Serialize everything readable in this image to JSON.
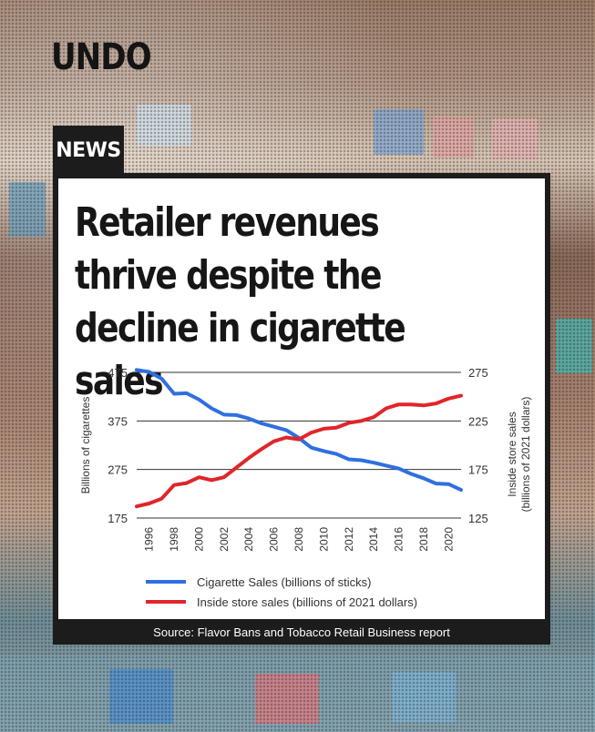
{
  "brand": {
    "logo": "UNDO"
  },
  "label": {
    "news": "NEWS"
  },
  "headline": "Retailer revenues thrive despite the decline in cigarette sales",
  "source": "Source: Flavor Bans and Tobacco Retail Business report",
  "colors": {
    "cigarette": "#2f6fe0",
    "store": "#e0262a",
    "grid": "#333333",
    "text": "#333333"
  },
  "chart_data": {
    "type": "line",
    "x": [
      1995,
      1996,
      1997,
      1998,
      1999,
      2000,
      2001,
      2002,
      2003,
      2004,
      2005,
      2006,
      2007,
      2008,
      2009,
      2010,
      2011,
      2012,
      2013,
      2014,
      2015,
      2016,
      2017,
      2018,
      2019,
      2020,
      2021
    ],
    "x_ticks": [
      1996,
      1998,
      2000,
      2002,
      2004,
      2006,
      2008,
      2010,
      2012,
      2014,
      2016,
      2018,
      2020
    ],
    "xlim": [
      1995,
      2021
    ],
    "left_axis": {
      "label": "Billions of cigarettes",
      "ylim": [
        175,
        475
      ],
      "ticks": [
        175,
        275,
        375,
        475
      ]
    },
    "right_axis": {
      "label_line1": "Inside store sales",
      "label_line2": "(billions of 2021 dollars)",
      "ylim": [
        125,
        275
      ],
      "ticks": [
        125,
        175,
        225,
        275
      ]
    },
    "series": [
      {
        "name": "Cigarette Sales (billions of sticks)",
        "axis": "left",
        "values": [
          480,
          476,
          462,
          431,
          432,
          419,
          401,
          388,
          387,
          380,
          370,
          363,
          356,
          340,
          320,
          313,
          307,
          296,
          294,
          289,
          283,
          277,
          266,
          257,
          246,
          245,
          233
        ]
      },
      {
        "name": "Inside store sales (billions of 2021 dollars)",
        "axis": "right",
        "values": [
          137,
          140,
          145,
          159,
          161,
          167,
          164,
          167,
          177,
          187,
          196,
          204,
          208,
          206,
          213,
          217,
          218,
          223,
          225,
          229,
          238,
          242,
          242,
          241,
          243,
          248,
          251
        ]
      }
    ],
    "legend": "bottom-left"
  }
}
